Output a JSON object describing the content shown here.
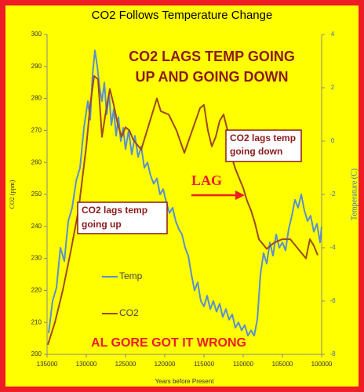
{
  "chart_data": {
    "type": "line",
    "title": "CO2 Follows Temperature Change",
    "x_label": "Years before Present",
    "y_label": "CO2 (ppm)",
    "y2_label": "Temperature (C)",
    "xlim": [
      135000,
      100000
    ],
    "xticks": [
      135000,
      130000,
      125000,
      120000,
      115000,
      110000,
      105000,
      100000
    ],
    "ylim": [
      200,
      300
    ],
    "yticks": [
      200,
      210,
      220,
      230,
      240,
      250,
      260,
      270,
      280,
      290,
      300
    ],
    "y2lim": [
      -8,
      4
    ],
    "y2ticks": [
      -8,
      -6,
      -4,
      -2,
      0,
      2,
      4
    ],
    "series": [
      {
        "name": "Temp",
        "color": "#5b8fd0",
        "axis": "y2",
        "x": [
          134800,
          134300,
          133800,
          133300,
          132800,
          132300,
          131800,
          131300,
          130800,
          130300,
          129800,
          129500,
          129200,
          128900,
          128600,
          128300,
          128000,
          127700,
          127400,
          127100,
          126800,
          126500,
          126200,
          125900,
          125600,
          125300,
          125000,
          124600,
          124200,
          123800,
          123400,
          123000,
          122600,
          122200,
          121800,
          121400,
          121000,
          120600,
          120200,
          119800,
          119400,
          119000,
          118600,
          118200,
          117800,
          117400,
          117000,
          116600,
          116200,
          115800,
          115400,
          115000,
          114600,
          114200,
          113800,
          113400,
          113000,
          112600,
          112200,
          111800,
          111400,
          111000,
          110600,
          110200,
          109800,
          109400,
          109000,
          108600,
          108200,
          107800,
          107400,
          107000,
          106600,
          106200,
          105800,
          105400,
          105000,
          104600,
          104200,
          103800,
          103400,
          103000,
          102600,
          102200,
          101800,
          101400,
          101000,
          100600,
          100200,
          100000
        ],
        "values": [
          -7.2,
          -6,
          -5.5,
          -4,
          -4.5,
          -3,
          -2.5,
          -1.5,
          -1,
          0.5,
          1.5,
          0.8,
          2.5,
          3.4,
          2.8,
          2,
          1.5,
          2.2,
          1,
          1.8,
          0.6,
          1.2,
          0.2,
          0.9,
          0,
          0.5,
          -0.3,
          0.4,
          -0.5,
          0.2,
          -0.6,
          -0.2,
          -1,
          -0.8,
          -1.3,
          -1.6,
          -1.4,
          -2,
          -1.8,
          -2.3,
          -2.7,
          -2.5,
          -3,
          -3.3,
          -3.5,
          -4,
          -4.3,
          -5,
          -5.6,
          -5.3,
          -6,
          -6.2,
          -5.8,
          -6.3,
          -6,
          -6.4,
          -6.1,
          -6.6,
          -6.3,
          -6.7,
          -6.5,
          -7,
          -6.8,
          -7.1,
          -6.9,
          -7.3,
          -7.1,
          -7.3,
          -6.7,
          -5,
          -4.2,
          -4.6,
          -3.8,
          -4.3,
          -3.5,
          -4,
          -3.8,
          -4.1,
          -3.3,
          -2.8,
          -2.2,
          -2.5,
          -2,
          -2.6,
          -3,
          -2.8,
          -3.4,
          -3.1,
          -3.8,
          -3.2
        ]
      },
      {
        "name": "CO2",
        "color": "#9c4a1a",
        "x": [
          134900,
          134000,
          133000,
          132000,
          131000,
          130500,
          130000,
          129500,
          129000,
          128500,
          128000,
          127500,
          127000,
          126500,
          126000,
          125500,
          125000,
          124500,
          124000,
          123000,
          122000,
          121000,
          120500,
          119500,
          118500,
          117500,
          116500,
          115500,
          115000,
          114500,
          114000,
          113500,
          113000,
          112500,
          112000,
          111500,
          111000,
          110000,
          109500,
          109000,
          108500,
          108000,
          107000,
          106000,
          105000,
          104000,
          103000,
          102000,
          101500,
          101000,
          100500
        ],
        "values": [
          203,
          210,
          220,
          232,
          245,
          255,
          265,
          278,
          287,
          286,
          268,
          276,
          283,
          278,
          272,
          268,
          271,
          270,
          267,
          264,
          272,
          280,
          276,
          275,
          270,
          263,
          270,
          277,
          278,
          270,
          265,
          268,
          273,
          275,
          270,
          262,
          258,
          252,
          248,
          245,
          241,
          236,
          233,
          235,
          236,
          236,
          233,
          230,
          236,
          234,
          231
        ]
      }
    ],
    "annotations": {
      "headline": [
        "CO2 LAGS TEMP GOING",
        "UP AND GOING DOWN"
      ],
      "down_box": [
        "CO2 lags temp",
        "going down"
      ],
      "up_box": [
        "CO2 lags temp",
        "going up"
      ],
      "lag": "LAG",
      "footer": "AL GORE GOT IT WRONG"
    }
  }
}
